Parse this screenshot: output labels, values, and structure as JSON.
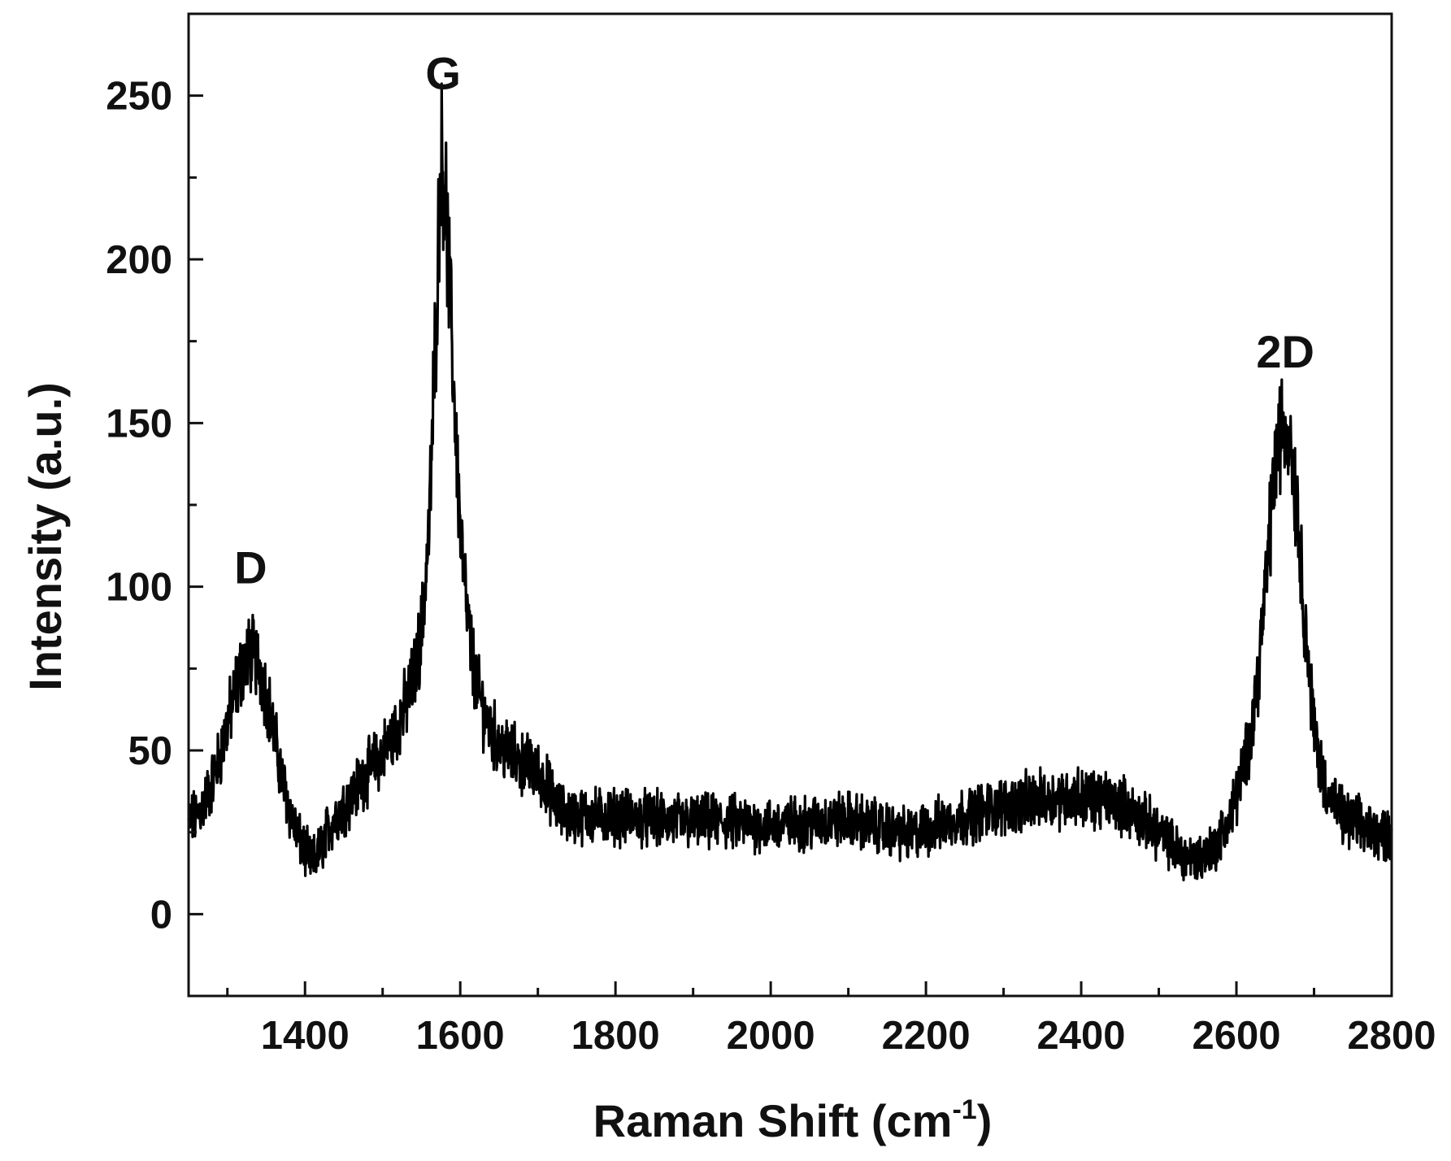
{
  "chart_data": {
    "type": "line",
    "title": "",
    "xlabel": "Raman Shift (cm",
    "xlabel_superscript": "-1",
    "xlabel_suffix": ")",
    "ylabel": "Intensity (a.u.)",
    "xlim": [
      1250,
      2800
    ],
    "ylim": [
      -25,
      275
    ],
    "x_ticks": [
      1400,
      1600,
      1800,
      2000,
      2200,
      2400,
      2600,
      2800
    ],
    "y_ticks": [
      0,
      50,
      100,
      150,
      200,
      250
    ],
    "x_tick_labels": [
      "1400",
      "1600",
      "1800",
      "2000",
      "2200",
      "2400",
      "2600",
      "2800"
    ],
    "y_tick_labels": [
      "0",
      "50",
      "100",
      "150",
      "200",
      "250"
    ],
    "grid": false,
    "line_color": "#000000",
    "series": [
      {
        "name": "",
        "x": [
          1250,
          1260,
          1270,
          1280,
          1290,
          1300,
          1310,
          1320,
          1330,
          1340,
          1350,
          1360,
          1370,
          1380,
          1390,
          1400,
          1410,
          1420,
          1430,
          1440,
          1450,
          1460,
          1470,
          1480,
          1490,
          1500,
          1510,
          1520,
          1530,
          1540,
          1550,
          1560,
          1570,
          1575,
          1580,
          1590,
          1600,
          1610,
          1620,
          1630,
          1640,
          1650,
          1660,
          1670,
          1680,
          1690,
          1700,
          1710,
          1720,
          1730,
          1750,
          1800,
          1850,
          1900,
          1950,
          2000,
          2050,
          2100,
          2150,
          2180,
          2200,
          2250,
          2300,
          2350,
          2400,
          2450,
          2500,
          2530,
          2550,
          2570,
          2590,
          2600,
          2610,
          2620,
          2630,
          2640,
          2650,
          2660,
          2670,
          2680,
          2690,
          2700,
          2710,
          2720,
          2730,
          2740,
          2760,
          2780,
          2800
        ],
        "y": [
          28,
          30,
          34,
          40,
          48,
          58,
          68,
          76,
          80,
          77,
          68,
          55,
          42,
          32,
          24,
          19,
          16,
          20,
          26,
          30,
          33,
          36,
          40,
          43,
          46,
          49,
          53,
          58,
          64,
          72,
          86,
          118,
          190,
          232,
          224,
          170,
          118,
          88,
          71,
          62,
          56,
          52,
          50,
          48,
          46,
          45,
          43,
          40,
          35,
          31,
          30,
          30,
          29,
          28,
          28,
          27,
          28,
          29,
          26,
          24,
          26,
          30,
          33,
          35,
          36,
          34,
          25,
          18,
          17,
          20,
          28,
          36,
          45,
          58,
          78,
          108,
          138,
          150,
          145,
          118,
          84,
          57,
          43,
          36,
          32,
          29,
          27,
          25,
          24
        ]
      }
    ],
    "annotations": [
      {
        "text": "D",
        "x": 1330,
        "y": 97
      },
      {
        "text": "G",
        "x": 1578,
        "y": 248
      },
      {
        "text": "2D",
        "x": 2663,
        "y": 163
      }
    ]
  }
}
